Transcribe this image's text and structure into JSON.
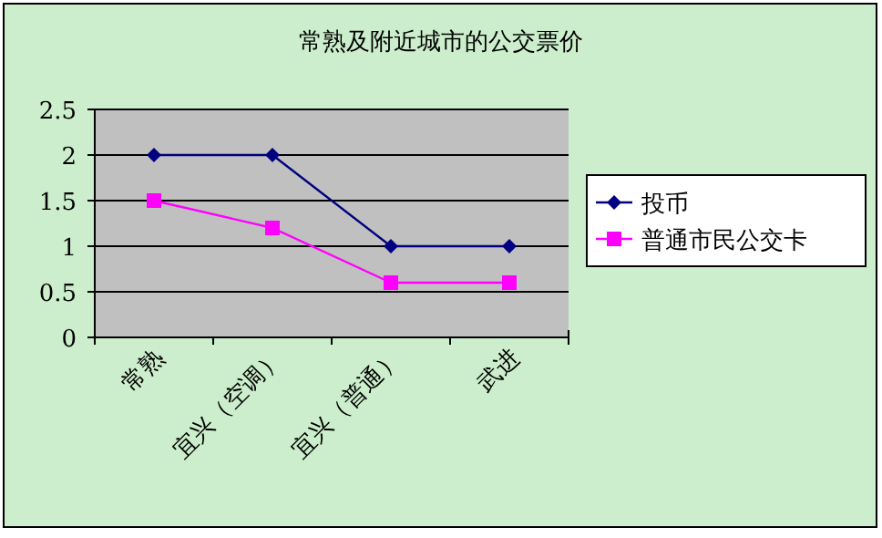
{
  "chart_data": {
    "type": "line",
    "title": "常熟及附近城市的公交票价",
    "categories": [
      "常熟",
      "宜兴（空调）",
      "宜兴（普通）",
      "武进"
    ],
    "series": [
      {
        "name": "投币",
        "color": "#000080",
        "values": [
          2,
          2,
          1,
          1
        ],
        "marker": "diamond"
      },
      {
        "name": "普通市民公交卡",
        "color": "#ff00ff",
        "values": [
          1.5,
          1.2,
          0.6,
          0.6
        ],
        "marker": "square"
      }
    ],
    "ylim": [
      0,
      2.5
    ],
    "yticks": [
      0,
      0.5,
      1,
      1.5,
      2,
      2.5
    ],
    "grid": "y",
    "legend": "right"
  }
}
